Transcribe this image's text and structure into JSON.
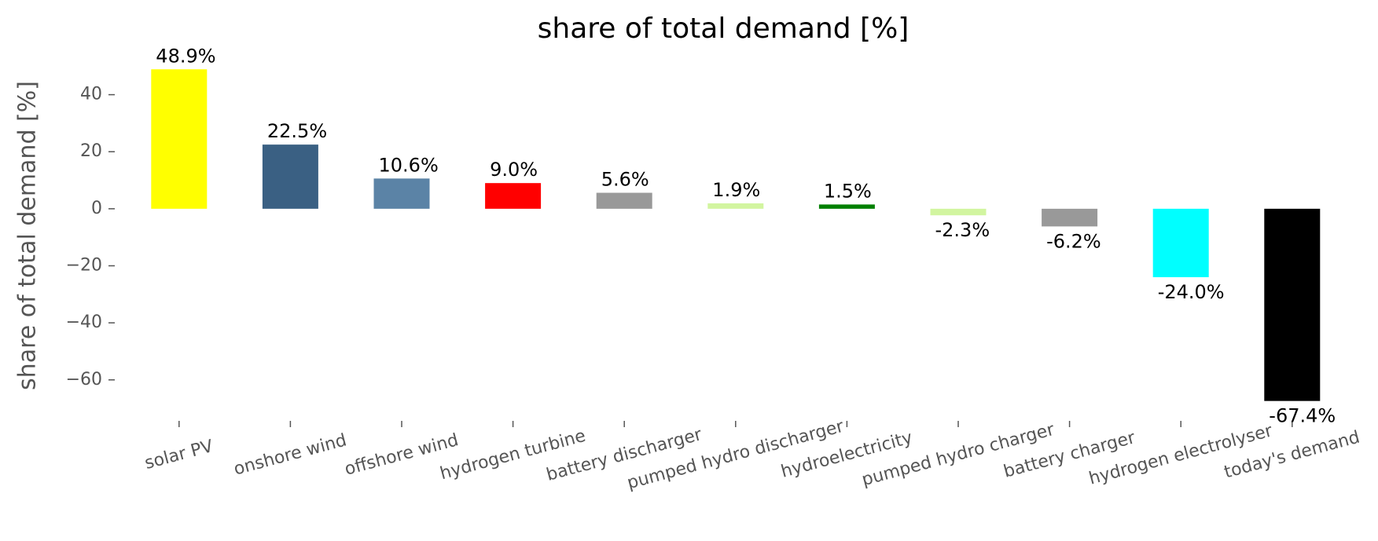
{
  "chart_data": {
    "type": "bar",
    "title": "share of total demand [%]",
    "y_label": "share of total demand [%]",
    "categories": [
      "solar PV",
      "onshore wind",
      "offshore wind",
      "hydrogen turbine",
      "battery discharger",
      "pumped hydro discharger",
      "hydroelectricity",
      "pumped hydro charger",
      "battery charger",
      "hydrogen electrolyser",
      "today's demand"
    ],
    "values": [
      48.9,
      22.5,
      10.6,
      9.0,
      5.6,
      1.9,
      1.5,
      -2.3,
      -6.2,
      -24.0,
      -67.4
    ],
    "value_labels": [
      "48.9%",
      "22.5%",
      "10.6%",
      "9.0%",
      "5.6%",
      "1.9%",
      "1.5%",
      "-2.3%",
      "-6.2%",
      "-24.0%",
      "-67.4%"
    ],
    "colors": [
      "#ffff00",
      "#3a6083",
      "#5b83a6",
      "#ff0000",
      "#999999",
      "#d2f5a0",
      "#008000",
      "#d2f5a0",
      "#999999",
      "#00ffff",
      "#000000"
    ],
    "ylim": [
      -73,
      52
    ],
    "yticks": [
      {
        "value": -60,
        "label": "−60"
      },
      {
        "value": -40,
        "label": "−40"
      },
      {
        "value": -20,
        "label": "−20"
      },
      0,
      20,
      40
    ],
    "grid": false
  }
}
